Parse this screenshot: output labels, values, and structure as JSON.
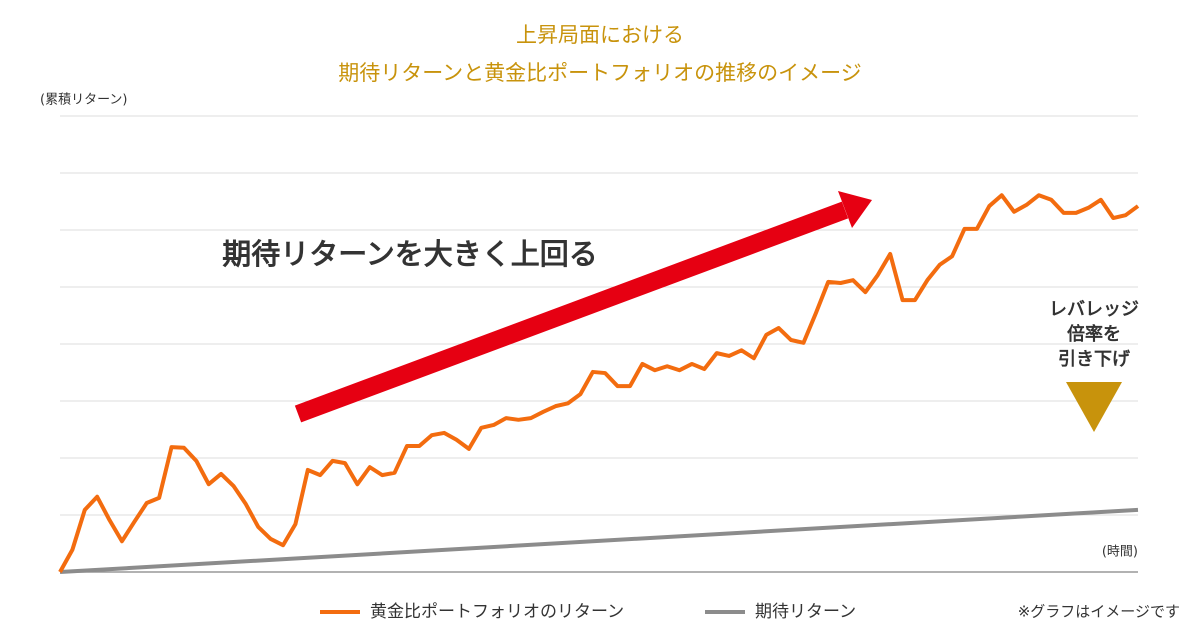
{
  "chart_data": {
    "type": "line",
    "title": [
      "上昇局面における",
      "期待リターンと黄金比ポートフォリオの推移のイメージ"
    ],
    "y_label": "(累積リターン)",
    "x_label": "(時間)",
    "annotations": [
      "期待リターンを大きく上回る",
      [
        "レバレッジ",
        "倍率を",
        "引き下げ"
      ]
    ],
    "note": "※グラフはイメージです",
    "xlim": [
      0,
      87
    ],
    "ylim": [
      0,
      8
    ],
    "yticks": [
      0,
      1,
      2,
      3,
      4,
      5,
      6,
      7,
      8
    ],
    "grid": true,
    "series": [
      {
        "name": "黄金比ポートフォリオのリターン",
        "color": "#f36c0f",
        "x": [
          0,
          1,
          2,
          3,
          4,
          5,
          6,
          7,
          8,
          9,
          10,
          11,
          12,
          13,
          14,
          15,
          16,
          17,
          18,
          19,
          20,
          21,
          22,
          23,
          24,
          25,
          26,
          27,
          28,
          29,
          30,
          31,
          32,
          33,
          34,
          35,
          36,
          37,
          38,
          39,
          40,
          41,
          42,
          43,
          44,
          45,
          46,
          47,
          48,
          49,
          50,
          51,
          52,
          53,
          54,
          55,
          56,
          57,
          58,
          59,
          60,
          61,
          62,
          63,
          64,
          65,
          66,
          67,
          68,
          69,
          70,
          71,
          72,
          73,
          74,
          75,
          76,
          77,
          78,
          79,
          80,
          81,
          82,
          83,
          84,
          85,
          86,
          87
        ],
        "values": [
          0,
          0.39,
          1.09,
          1.32,
          0.91,
          0.54,
          0.88,
          1.21,
          1.3,
          2.19,
          2.18,
          1.95,
          1.54,
          1.72,
          1.51,
          1.19,
          0.79,
          0.58,
          0.47,
          0.84,
          1.79,
          1.7,
          1.95,
          1.91,
          1.54,
          1.84,
          1.7,
          1.74,
          2.21,
          2.21,
          2.4,
          2.44,
          2.32,
          2.16,
          2.53,
          2.58,
          2.7,
          2.67,
          2.7,
          2.81,
          2.91,
          2.96,
          3.12,
          3.51,
          3.49,
          3.26,
          3.26,
          3.65,
          3.54,
          3.61,
          3.54,
          3.65,
          3.56,
          3.84,
          3.79,
          3.89,
          3.75,
          4.16,
          4.28,
          4.07,
          4.02,
          4.54,
          5.09,
          5.07,
          5.12,
          4.91,
          5.21,
          5.58,
          4.77,
          4.77,
          5.12,
          5.39,
          5.54,
          6.02,
          6.02,
          6.42,
          6.61,
          6.32,
          6.44,
          6.61,
          6.53,
          6.3,
          6.3,
          6.39,
          6.53,
          6.21,
          6.26,
          6.42
        ]
      },
      {
        "name": "期待リターン",
        "color": "#8c8c8c",
        "x": [
          0,
          87
        ],
        "values": [
          0,
          1.09
        ]
      }
    ]
  }
}
